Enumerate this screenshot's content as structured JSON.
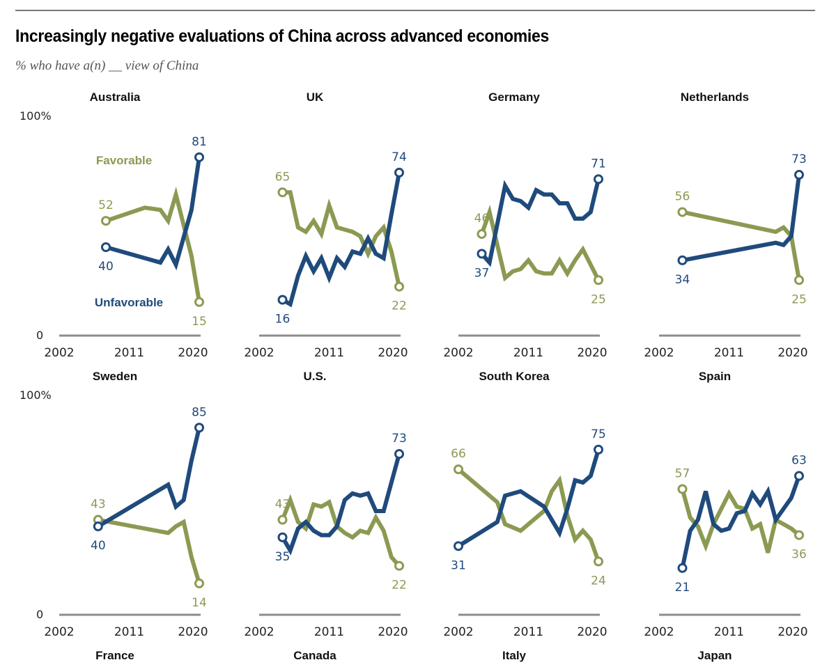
{
  "header": {
    "title": "Increasingly negative evaluations of China across advanced economies",
    "subtitle": "% who have a(n) __ view of China"
  },
  "colors": {
    "favorable": "#8b9a52",
    "unfavorable": "#1f4a7c",
    "axis": "#8c8c8c"
  },
  "legend": {
    "favorable": "Favorable",
    "unfavorable": "Unfavorable"
  },
  "chart_data": {
    "type": "line",
    "title": "Increasingly negative evaluations of China across advanced economies",
    "subtitle": "% who have a(n) __ view of China",
    "xlim": [
      2002,
      2020
    ],
    "ylim": [
      0,
      100
    ],
    "x_ticks": [
      "2002",
      "2011",
      "2020"
    ],
    "y_ticks": [
      "0",
      "100%"
    ],
    "grid": false,
    "row_top_titles": [
      [
        "Australia",
        "UK",
        "Germany",
        "Netherlands"
      ],
      [
        "Sweden",
        "U.S.",
        "South Korea",
        "Spain"
      ]
    ],
    "row_bottom_titles": [
      [],
      [
        "France",
        "Canada",
        "Italy",
        "Japan"
      ]
    ],
    "panels": [
      {
        "name": "Australia",
        "years": [
          2008,
          2013,
          2015,
          2016,
          2017,
          2019,
          2020
        ],
        "series": [
          {
            "name": "Favorable",
            "values": [
              52,
              58,
              57,
              52,
              64,
              36,
              15
            ]
          },
          {
            "name": "Unfavorable",
            "values": [
              40,
              35,
              33,
              39,
              32,
              57,
              81
            ]
          }
        ],
        "labels": {
          "fav_start": "52",
          "fav_end": "15",
          "unfav_start": "40",
          "unfav_end": "81"
        }
      },
      {
        "name": "UK",
        "years": [
          2005,
          2006,
          2007,
          2008,
          2009,
          2010,
          2011,
          2012,
          2013,
          2014,
          2015,
          2016,
          2017,
          2018,
          2019,
          2020
        ],
        "series": [
          {
            "name": "Favorable",
            "values": [
              65,
              65,
              49,
              47,
              52,
              46,
              59,
              49,
              48,
              47,
              45,
              37,
              45,
              49,
              38,
              22
            ]
          },
          {
            "name": "Unfavorable",
            "values": [
              16,
              14,
              27,
              36,
              29,
              35,
              26,
              35,
              31,
              38,
              37,
              44,
              37,
              35,
              55,
              74
            ]
          }
        ],
        "labels": {
          "fav_start": "65",
          "fav_end": "22",
          "unfav_start": "16",
          "unfav_end": "74"
        }
      },
      {
        "name": "Germany",
        "years": [
          2005,
          2006,
          2008,
          2009,
          2010,
          2011,
          2012,
          2013,
          2014,
          2015,
          2016,
          2017,
          2018,
          2019,
          2020
        ],
        "series": [
          {
            "name": "Favorable",
            "values": [
              46,
              56,
              26,
              29,
              30,
              34,
              29,
              28,
              28,
              34,
              28,
              34,
              39,
              32,
              25
            ]
          },
          {
            "name": "Unfavorable",
            "values": [
              37,
              33,
              68,
              62,
              61,
              58,
              66,
              64,
              64,
              60,
              60,
              53,
              53,
              56,
              71
            ]
          }
        ],
        "labels": {
          "fav_start": "46",
          "fav_end": "25",
          "unfav_start": "37",
          "unfav_end": "71"
        }
      },
      {
        "name": "Netherlands",
        "years": [
          2005,
          2017,
          2018,
          2019,
          2020
        ],
        "series": [
          {
            "name": "Favorable",
            "values": [
              56,
              47,
              49,
              45,
              25
            ]
          },
          {
            "name": "Unfavorable",
            "values": [
              34,
              42,
              41,
              45,
              73
            ]
          }
        ],
        "labels": {
          "fav_start": "56",
          "fav_end": "25",
          "unfav_start": "34",
          "unfav_end": "73"
        }
      },
      {
        "name": "France",
        "years": [
          2007,
          2016,
          2017,
          2018,
          2019,
          2020
        ],
        "series": [
          {
            "name": "Favorable",
            "values": [
              43,
              37,
              40,
              42,
              26,
              14
            ]
          },
          {
            "name": "Unfavorable",
            "values": [
              40,
              59,
              49,
              52,
              70,
              85
            ]
          }
        ],
        "labels": {
          "fav_start": "43",
          "fav_end": "14",
          "unfav_start": "40",
          "unfav_end": "85"
        }
      },
      {
        "name": "Canada",
        "years": [
          2005,
          2006,
          2007,
          2008,
          2009,
          2010,
          2011,
          2012,
          2013,
          2014,
          2015,
          2016,
          2017,
          2018,
          2019,
          2020
        ],
        "series": [
          {
            "name": "Favorable",
            "values": [
              43,
              52,
              42,
              39,
              50,
              49,
              51,
              40,
              37,
              35,
              38,
              37,
              44,
              38,
              26,
              22
            ]
          },
          {
            "name": "Unfavorable",
            "values": [
              35,
              29,
              39,
              42,
              38,
              36,
              36,
              40,
              52,
              55,
              54,
              55,
              47,
              47,
              60,
              73
            ]
          }
        ],
        "labels": {
          "fav_start": "43",
          "fav_end": "22",
          "unfav_start": "35",
          "unfav_end": "73"
        }
      },
      {
        "name": "Italy",
        "years": [
          2002,
          2007,
          2008,
          2010,
          2013,
          2014,
          2015,
          2016,
          2017,
          2018,
          2019,
          2020
        ],
        "series": [
          {
            "name": "Favorable",
            "values": [
              66,
              51,
              41,
              38,
              47,
              56,
              61,
              45,
              34,
              38,
              34,
              24
            ]
          },
          {
            "name": "Unfavorable",
            "values": [
              31,
              42,
              54,
              56,
              49,
              43,
              37,
              48,
              61,
              60,
              63,
              75
            ]
          }
        ],
        "labels": {
          "fav_start": "66",
          "fav_end": "24",
          "unfav_start": "31",
          "unfav_end": "75"
        }
      },
      {
        "name": "Japan",
        "years": [
          2005,
          2006,
          2007,
          2008,
          2009,
          2010,
          2011,
          2012,
          2013,
          2014,
          2015,
          2016,
          2017,
          2018,
          2019,
          2020
        ],
        "series": [
          {
            "name": "Favorable",
            "values": [
              57,
              44,
              40,
              31,
              41,
              48,
              55,
              49,
              48,
              39,
              41,
              28,
              43,
              41,
              39,
              36
            ]
          },
          {
            "name": "Unfavorable",
            "values": [
              21,
              38,
              43,
              56,
              41,
              38,
              39,
              46,
              47,
              55,
              50,
              56,
              43,
              48,
              53,
              63
            ]
          }
        ],
        "labels": {
          "fav_start": "57",
          "fav_end": "36",
          "unfav_start": "21",
          "unfav_end": "63"
        }
      }
    ]
  }
}
